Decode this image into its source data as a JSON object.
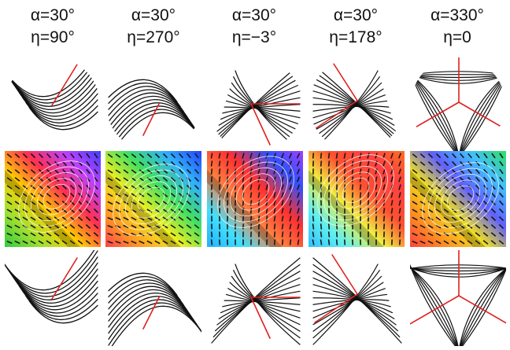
{
  "columns": [
    {
      "alpha_label": "α=30°",
      "eta_label": "η=90°",
      "alpha_deg": 30,
      "eta_deg": 90
    },
    {
      "alpha_label": "α=30°",
      "eta_label": "η=270°",
      "alpha_deg": 30,
      "eta_deg": 270
    },
    {
      "alpha_label": "α=30°",
      "eta_label": "η=−3°",
      "alpha_deg": 30,
      "eta_deg": -3
    },
    {
      "alpha_label": "α=30°",
      "eta_label": "η=178°",
      "alpha_deg": 30,
      "eta_deg": 178
    },
    {
      "alpha_label": "α=330°",
      "eta_label": "η=0",
      "alpha_deg": 330,
      "eta_deg": 0
    }
  ],
  "rows": [
    {
      "name": "streamline-row-circular",
      "kind": "streamlines"
    },
    {
      "name": "phase-map-row",
      "kind": "phase-map"
    },
    {
      "name": "streamline-row-square",
      "kind": "streamlines"
    }
  ],
  "colors": {
    "streamline": "#111111",
    "singular-line": "#e02020",
    "contour": "#ffffff"
  }
}
